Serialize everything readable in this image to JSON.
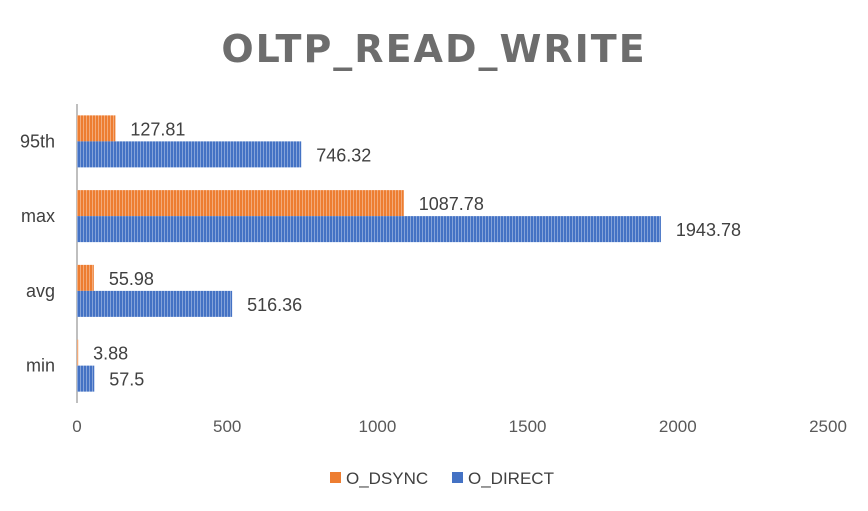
{
  "chart_data": {
    "type": "bar",
    "orientation": "horizontal",
    "title": "OLTP_READ_WRITE",
    "categories": [
      "95th",
      "max",
      "avg",
      "min"
    ],
    "series": [
      {
        "name": "O_DSYNC",
        "color": "#ED7D31",
        "values": [
          127.81,
          1087.78,
          55.98,
          3.88
        ],
        "labels": [
          "127.81",
          "1087.78",
          "55.98",
          "3.88"
        ]
      },
      {
        "name": "O_DIRECT",
        "color": "#4472C4",
        "values": [
          746.32,
          1943.78,
          516.36,
          57.5
        ],
        "labels": [
          "746.32",
          "1943.78",
          "516.36",
          "57.5"
        ]
      }
    ],
    "xlim": [
      0,
      2500
    ],
    "xticks": [
      "0",
      "500",
      "1000",
      "1500",
      "2000",
      "2500"
    ],
    "grid": false,
    "legend": "bottom"
  }
}
